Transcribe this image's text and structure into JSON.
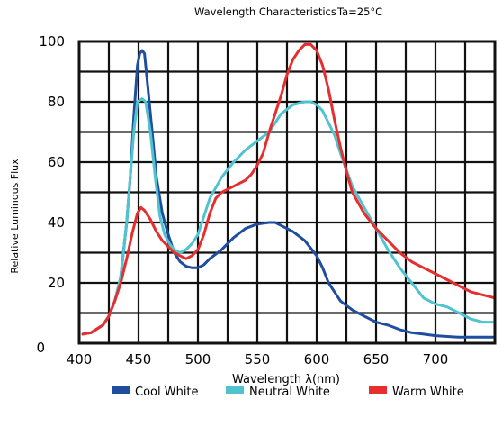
{
  "chart_data": {
    "type": "line",
    "title": "Wavelength Characteristics",
    "subtitle": "Ta=25°C",
    "xlabel": "Wavelength λ(nm)",
    "ylabel": "Relative Luminous Flux",
    "xlim": [
      400,
      750
    ],
    "ylim": [
      0,
      100
    ],
    "x_ticks": [
      "400",
      "450",
      "500",
      "550",
      "600",
      "650",
      "700"
    ],
    "y_ticks": [
      "0",
      "20",
      "40",
      "60",
      "80",
      "100"
    ],
    "grid": true,
    "legend_position": "bottom",
    "series": [
      {
        "name": "Cool White",
        "color": "#1f4e9e",
        "points": [
          [
            403,
            3
          ],
          [
            410,
            3.5
          ],
          [
            420,
            6
          ],
          [
            425,
            9
          ],
          [
            430,
            14
          ],
          [
            435,
            22
          ],
          [
            440,
            40
          ],
          [
            443,
            55
          ],
          [
            446,
            75
          ],
          [
            449,
            92
          ],
          [
            451,
            96
          ],
          [
            453,
            97
          ],
          [
            455,
            96
          ],
          [
            458,
            84
          ],
          [
            462,
            68
          ],
          [
            465,
            55
          ],
          [
            470,
            43
          ],
          [
            475,
            36
          ],
          [
            480,
            30
          ],
          [
            485,
            27
          ],
          [
            490,
            25.5
          ],
          [
            495,
            25
          ],
          [
            500,
            25
          ],
          [
            505,
            26
          ],
          [
            510,
            28
          ],
          [
            520,
            31
          ],
          [
            530,
            35
          ],
          [
            540,
            38
          ],
          [
            550,
            39.5
          ],
          [
            560,
            40
          ],
          [
            565,
            40
          ],
          [
            570,
            39
          ],
          [
            580,
            37
          ],
          [
            590,
            34
          ],
          [
            600,
            29
          ],
          [
            605,
            25
          ],
          [
            610,
            20
          ],
          [
            615,
            17
          ],
          [
            620,
            14
          ],
          [
            630,
            11
          ],
          [
            640,
            9
          ],
          [
            650,
            7
          ],
          [
            660,
            6
          ],
          [
            670,
            4.5
          ],
          [
            680,
            3.5
          ],
          [
            690,
            3
          ],
          [
            700,
            2.5
          ],
          [
            720,
            2
          ],
          [
            750,
            2
          ]
        ]
      },
      {
        "name": "Neutral White",
        "color": "#4fc3cf",
        "points": [
          [
            403,
            3
          ],
          [
            410,
            3.5
          ],
          [
            420,
            6
          ],
          [
            425,
            9
          ],
          [
            430,
            14
          ],
          [
            435,
            22
          ],
          [
            440,
            40
          ],
          [
            443,
            55
          ],
          [
            446,
            70
          ],
          [
            449,
            80
          ],
          [
            453,
            81
          ],
          [
            456,
            80
          ],
          [
            460,
            70
          ],
          [
            464,
            55
          ],
          [
            468,
            42
          ],
          [
            472,
            36
          ],
          [
            476,
            33
          ],
          [
            480,
            31
          ],
          [
            485,
            30
          ],
          [
            490,
            31
          ],
          [
            495,
            33
          ],
          [
            500,
            36
          ],
          [
            505,
            42
          ],
          [
            510,
            48
          ],
          [
            520,
            55
          ],
          [
            530,
            60
          ],
          [
            540,
            64
          ],
          [
            550,
            67
          ],
          [
            560,
            70
          ],
          [
            565,
            73
          ],
          [
            570,
            76
          ],
          [
            580,
            79
          ],
          [
            590,
            80
          ],
          [
            595,
            80
          ],
          [
            600,
            79
          ],
          [
            605,
            77
          ],
          [
            610,
            73
          ],
          [
            615,
            69
          ],
          [
            620,
            63
          ],
          [
            630,
            52
          ],
          [
            640,
            45
          ],
          [
            650,
            38
          ],
          [
            660,
            31
          ],
          [
            670,
            25
          ],
          [
            680,
            20
          ],
          [
            690,
            15
          ],
          [
            700,
            13
          ],
          [
            710,
            12
          ],
          [
            720,
            10
          ],
          [
            730,
            8
          ],
          [
            740,
            7
          ],
          [
            750,
            7
          ]
        ]
      },
      {
        "name": "Warm White",
        "color": "#e62e2e",
        "points": [
          [
            403,
            3
          ],
          [
            410,
            3.5
          ],
          [
            420,
            6
          ],
          [
            425,
            9
          ],
          [
            430,
            14
          ],
          [
            435,
            20
          ],
          [
            440,
            28
          ],
          [
            445,
            37
          ],
          [
            449,
            43
          ],
          [
            452,
            45
          ],
          [
            455,
            44
          ],
          [
            460,
            41
          ],
          [
            465,
            37
          ],
          [
            470,
            34
          ],
          [
            475,
            32
          ],
          [
            480,
            30
          ],
          [
            485,
            29
          ],
          [
            490,
            28
          ],
          [
            495,
            29
          ],
          [
            500,
            31
          ],
          [
            505,
            36
          ],
          [
            510,
            43
          ],
          [
            515,
            48
          ],
          [
            520,
            50
          ],
          [
            530,
            52
          ],
          [
            540,
            54
          ],
          [
            545,
            56
          ],
          [
            550,
            59
          ],
          [
            555,
            63
          ],
          [
            560,
            70
          ],
          [
            565,
            76
          ],
          [
            570,
            82
          ],
          [
            575,
            89
          ],
          [
            580,
            94
          ],
          [
            585,
            97
          ],
          [
            590,
            99
          ],
          [
            595,
            99
          ],
          [
            600,
            97
          ],
          [
            605,
            92
          ],
          [
            610,
            84
          ],
          [
            615,
            74
          ],
          [
            620,
            65
          ],
          [
            625,
            57
          ],
          [
            630,
            50
          ],
          [
            640,
            43
          ],
          [
            650,
            38
          ],
          [
            660,
            34
          ],
          [
            670,
            30
          ],
          [
            680,
            27
          ],
          [
            690,
            25
          ],
          [
            700,
            23
          ],
          [
            710,
            21
          ],
          [
            720,
            19
          ],
          [
            730,
            17
          ],
          [
            740,
            16
          ],
          [
            750,
            15
          ]
        ]
      }
    ]
  }
}
